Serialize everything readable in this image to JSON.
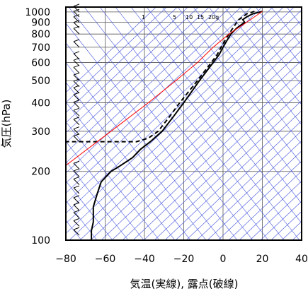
{
  "chart_data": {
    "type": "line",
    "title": "",
    "xlabel": "気温(実線), 露点(破線)",
    "ylabel": "気圧(hPa)",
    "xlim": [
      -80,
      40
    ],
    "ylim_hpa": [
      1050,
      100
    ],
    "y_scale": "log",
    "grid": true,
    "x_ticks": [
      "−80",
      "−60",
      "−40",
      "−20",
      "0",
      "20",
      "40"
    ],
    "y_ticks": [
      {
        "p": 100,
        "label": "100"
      },
      {
        "p": 200,
        "label": "200"
      },
      {
        "p": 300,
        "label": "300"
      },
      {
        "p": 400,
        "label": "400"
      },
      {
        "p": 500,
        "label": "500"
      },
      {
        "p": 600,
        "label": "600"
      },
      {
        "p": 700,
        "label": "700"
      },
      {
        "p": 800,
        "label": "800"
      },
      {
        "p": 900,
        "label": "900"
      },
      {
        "p": 1000,
        "label": "1000"
      }
    ],
    "mixing_ratio_labels": [
      "1",
      "5",
      "10",
      "15",
      "20g"
    ],
    "series": [
      {
        "style": "solid",
        "color": "#000000",
        "points": [
          [
            1005,
            20
          ],
          [
            980,
            15
          ],
          [
            950,
            12
          ],
          [
            925,
            10
          ],
          [
            900,
            11
          ],
          [
            875,
            9
          ],
          [
            850,
            7
          ],
          [
            800,
            4
          ],
          [
            750,
            2
          ],
          [
            700,
            0
          ],
          [
            650,
            -2
          ],
          [
            600,
            -5
          ],
          [
            500,
            -12
          ],
          [
            400,
            -20
          ],
          [
            350,
            -25
          ],
          [
            300,
            -31
          ],
          [
            270,
            -37
          ],
          [
            250,
            -42
          ],
          [
            230,
            -46
          ],
          [
            210,
            -53
          ],
          [
            200,
            -57
          ],
          [
            180,
            -62
          ],
          [
            160,
            -64
          ],
          [
            140,
            -66
          ],
          [
            120,
            -66
          ],
          [
            110,
            -67
          ],
          [
            100,
            -67
          ]
        ]
      },
      {
        "style": "dashed",
        "color": "#000000",
        "points": [
          [
            1005,
            16
          ],
          [
            980,
            12
          ],
          [
            950,
            10
          ],
          [
            925,
            8
          ],
          [
            900,
            7
          ],
          [
            850,
            5
          ],
          [
            800,
            3
          ],
          [
            750,
            1
          ],
          [
            700,
            -1
          ],
          [
            650,
            -3
          ],
          [
            600,
            -6
          ],
          [
            500,
            -13
          ],
          [
            400,
            -22
          ],
          [
            350,
            -27
          ],
          [
            300,
            -33
          ],
          [
            280,
            -38
          ],
          [
            270,
            -44
          ],
          [
            270,
            -80
          ]
        ]
      },
      {
        "style": "solid",
        "color": "#ff0000",
        "points": [
          [
            1005,
            20
          ],
          [
            900,
            12
          ],
          [
            800,
            3
          ],
          [
            700,
            -5
          ],
          [
            600,
            -13
          ],
          [
            500,
            -24
          ],
          [
            400,
            -38
          ],
          [
            300,
            -57
          ],
          [
            200,
            -84
          ]
        ]
      }
    ],
    "wind_barbs_present": true
  }
}
